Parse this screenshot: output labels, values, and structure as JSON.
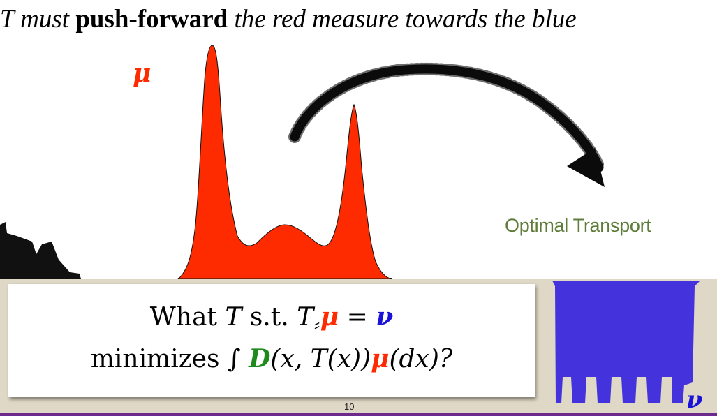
{
  "title": {
    "part1": "T must",
    "bold": "push-forward",
    "part2": "the red measure towards the blue"
  },
  "labels": {
    "mu": "μ",
    "nu": "ν",
    "optimal_transport": "Optimal Transport"
  },
  "question": {
    "line1": {
      "what": "What ",
      "T": "T",
      "st": " s.t. ",
      "T2": "T",
      "sub": "♯",
      "mu": "μ",
      "eq": " = ",
      "nu": "ν"
    },
    "line2": {
      "minimizes": "minimizes ",
      "integral": "∫ ",
      "D": "D",
      "args": "(x, T(x))",
      "mu": "μ",
      "dx": "(dx)?"
    }
  },
  "page_number": "10",
  "colors": {
    "red_measure": "#ff2b00",
    "blue_measure": "#4433dd",
    "green_D": "#1e8a1e",
    "ot_text": "#5f7d3a",
    "band": "#dfd8c6"
  },
  "icons": [
    "arrow-icon",
    "bulldozer-icon"
  ]
}
